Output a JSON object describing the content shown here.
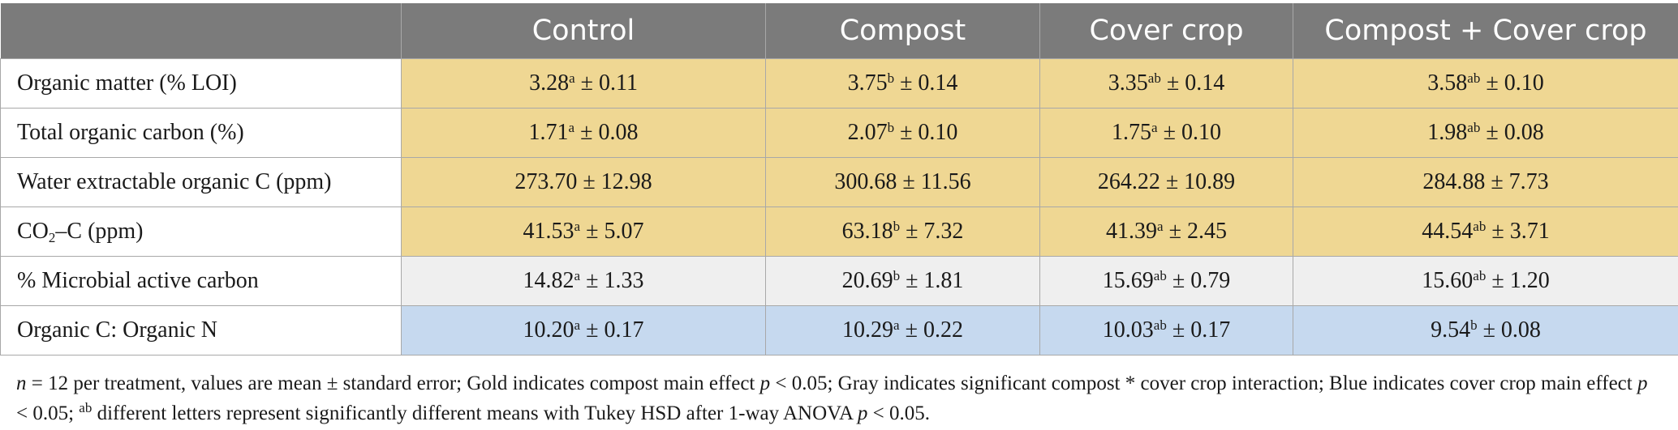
{
  "table": {
    "headers": [
      "",
      "Control",
      "Compost",
      "Cover crop",
      "Compost + Cover crop"
    ],
    "rows": [
      {
        "label": "Organic matter (% LOI)",
        "highlight": "gold",
        "cells": [
          {
            "value": "3.28",
            "sup": "a",
            "rest": " ± 0.11"
          },
          {
            "value": "3.75",
            "sup": "b",
            "rest": " ± 0.14"
          },
          {
            "value": "3.35",
            "sup": "ab",
            "rest": " ± 0.14"
          },
          {
            "value": "3.58",
            "sup": "ab",
            "rest": " ± 0.10"
          }
        ]
      },
      {
        "label": "Total organic carbon (%)",
        "highlight": "gold",
        "cells": [
          {
            "value": "1.71",
            "sup": "a",
            "rest": " ± 0.08"
          },
          {
            "value": "2.07",
            "sup": "b",
            "rest": " ± 0.10"
          },
          {
            "value": "1.75",
            "sup": "a",
            "rest": " ± 0.10"
          },
          {
            "value": "1.98",
            "sup": "ab",
            "rest": " ± 0.08"
          }
        ]
      },
      {
        "label": "Water extractable organic C (ppm)",
        "highlight": "gold",
        "cells": [
          {
            "value": "273.70",
            "sup": "",
            "rest": " ± 12.98"
          },
          {
            "value": "300.68",
            "sup": "",
            "rest": " ± 11.56"
          },
          {
            "value": "264.22",
            "sup": "",
            "rest": " ± 10.89"
          },
          {
            "value": "284.88",
            "sup": "",
            "rest": " ± 7.73"
          }
        ]
      },
      {
        "label_pre": "CO",
        "label_sub": "2",
        "label_post": "–C (ppm)",
        "highlight": "gold",
        "cells": [
          {
            "value": "41.53",
            "sup": "a",
            "rest": " ± 5.07"
          },
          {
            "value": "63.18",
            "sup": "b",
            "rest": " ± 7.32"
          },
          {
            "value": "41.39",
            "sup": "a",
            "rest": " ± 2.45"
          },
          {
            "value": "44.54",
            "sup": "ab",
            "rest": " ± 3.71"
          }
        ]
      },
      {
        "label": "% Microbial active carbon",
        "highlight": "gray",
        "cells": [
          {
            "value": "14.82",
            "sup": "a",
            "rest": " ± 1.33"
          },
          {
            "value": "20.69",
            "sup": "b",
            "rest": " ± 1.81"
          },
          {
            "value": "15.69",
            "sup": "ab",
            "rest": " ± 0.79"
          },
          {
            "value": "15.60",
            "sup": "ab",
            "rest": " ± 1.20"
          }
        ]
      },
      {
        "label": "Organic C: Organic N",
        "highlight": "blue",
        "cells": [
          {
            "value": "10.20",
            "sup": "a",
            "rest": " ± 0.17"
          },
          {
            "value": "10.29",
            "sup": "a",
            "rest": " ± 0.22"
          },
          {
            "value": "10.03",
            "sup": "ab",
            "rest": " ± 0.17"
          },
          {
            "value": "9.54",
            "sup": "b",
            "rest": " ± 0.08"
          }
        ]
      }
    ]
  },
  "colors": {
    "header_bg": "#7b7b7b",
    "gold": "#efd793",
    "gray": "#efefef",
    "blue": "#c6d9ef"
  },
  "footnote": {
    "n_italic": "n",
    "part1": " = 12 per treatment, values are mean ± standard error; Gold indicates compost main effect ",
    "p1": "p",
    "part2": " < 0.05; Gray indicates significant compost * cover crop interaction; Blue indicates cover crop main effect ",
    "p2": "p",
    "part3": " < 0.05; ",
    "ab_sup": "ab",
    "part4": " different letters represent significantly different means with Tukey HSD after 1-way ANOVA ",
    "p3": "p",
    "part5": " < 0.05."
  }
}
